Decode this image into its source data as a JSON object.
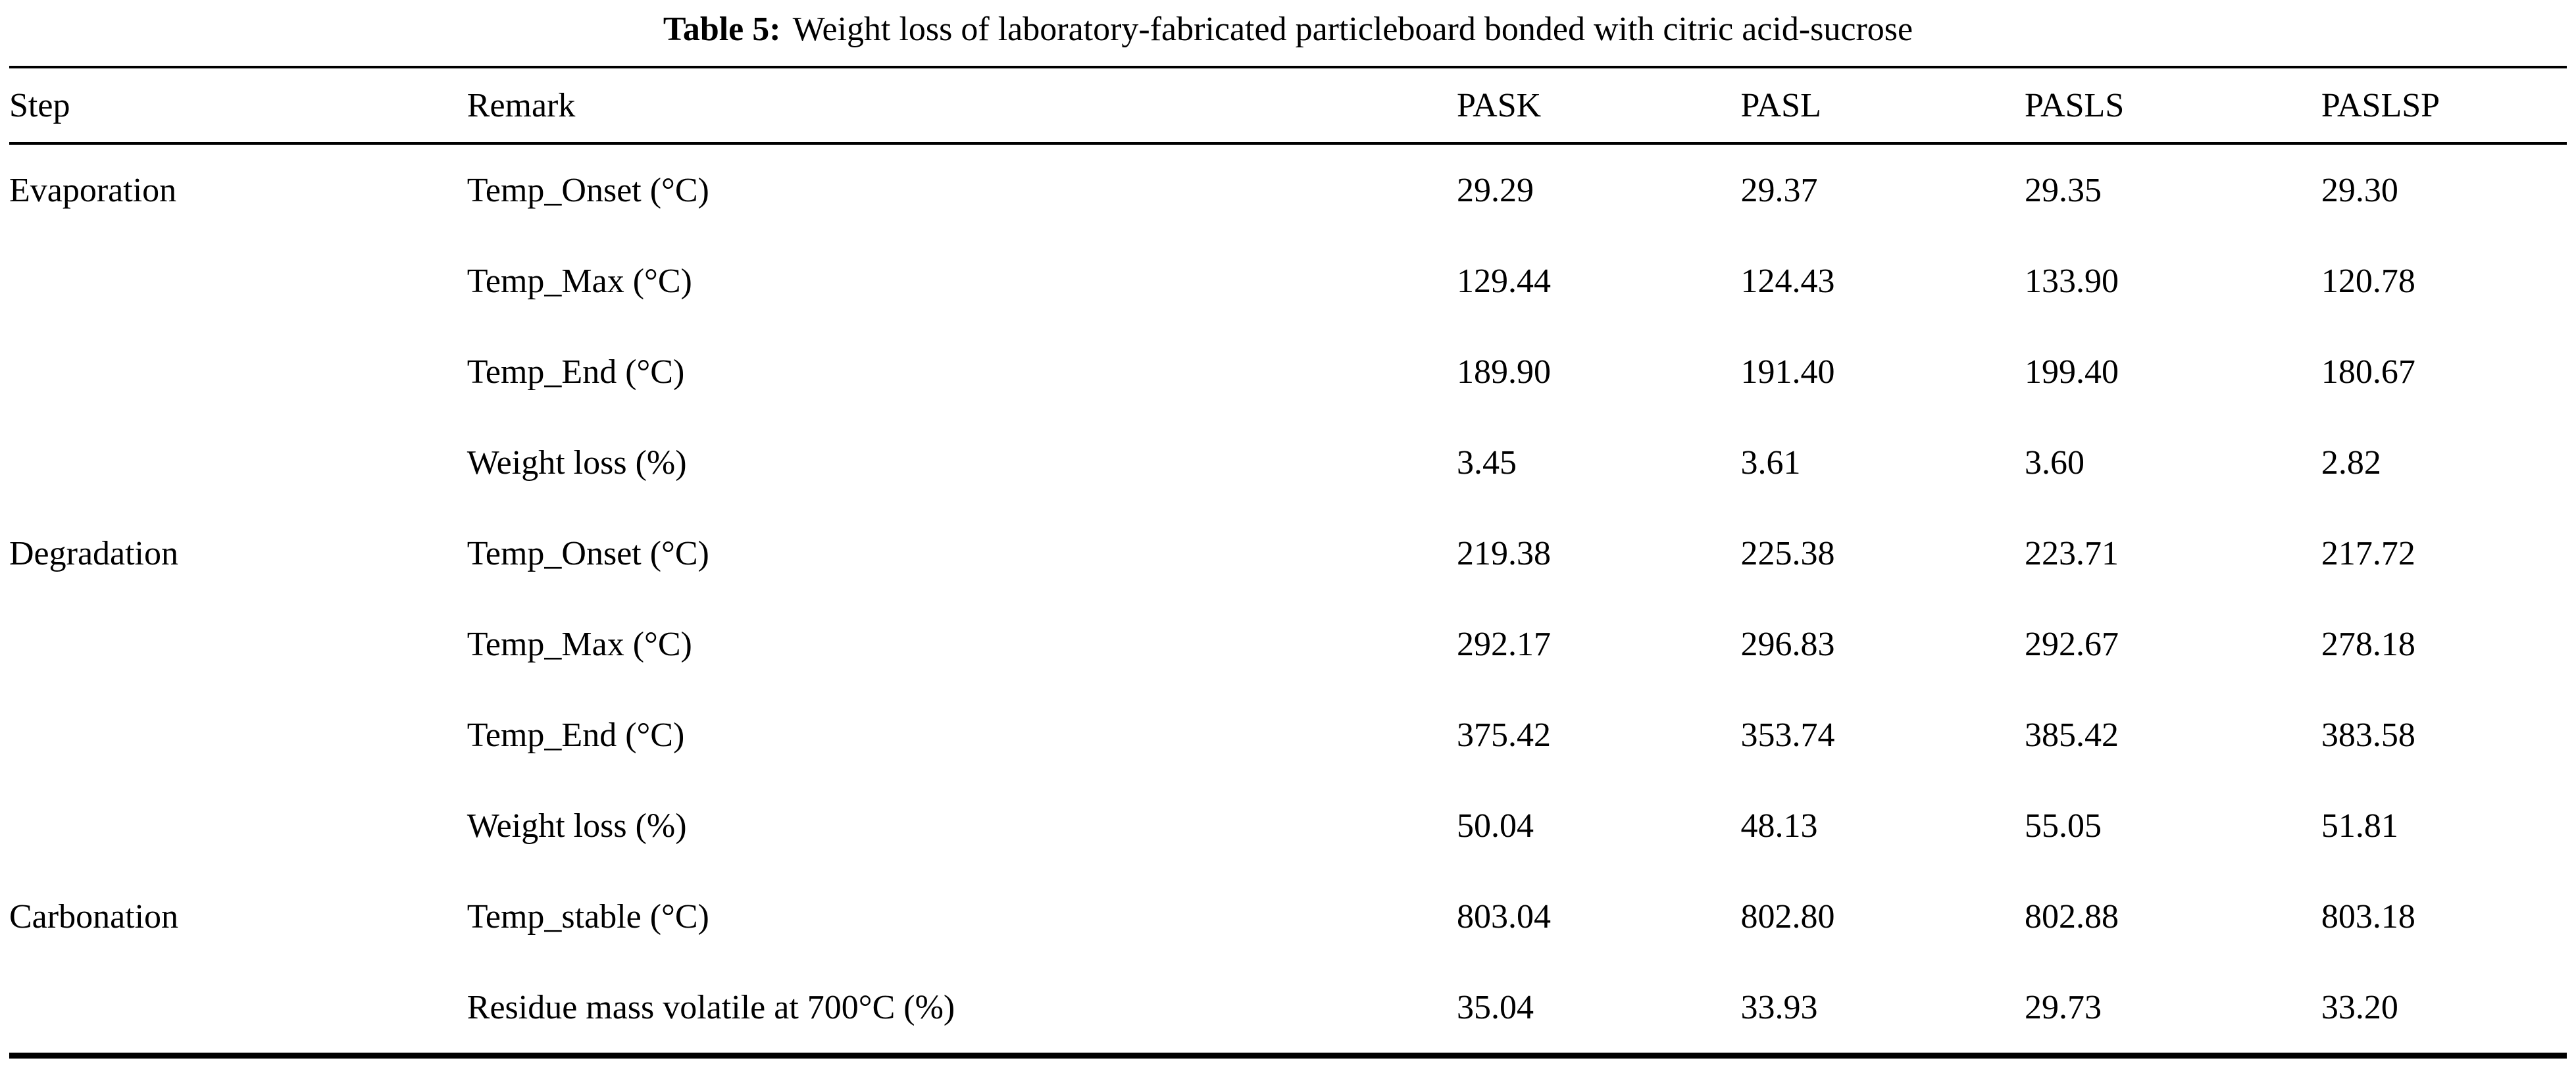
{
  "caption": {
    "label": "Table 5:",
    "text": "Weight loss of laboratory-fabricated particleboard bonded with citric acid-sucrose"
  },
  "table": {
    "headers": [
      "Step",
      "Remark",
      "PASK",
      "PASL",
      "PASLS",
      "PASLSP"
    ],
    "rows": [
      {
        "step": "Evaporation",
        "remark": "Temp_Onset (°C)",
        "values": [
          "29.29",
          "29.37",
          "29.35",
          "29.30"
        ]
      },
      {
        "step": "",
        "remark": "Temp_Max (°C)",
        "values": [
          "129.44",
          "124.43",
          "133.90",
          "120.78"
        ]
      },
      {
        "step": "",
        "remark": "Temp_End (°C)",
        "values": [
          "189.90",
          "191.40",
          "199.40",
          "180.67"
        ]
      },
      {
        "step": "",
        "remark": "Weight loss (%)",
        "values": [
          "3.45",
          "3.61",
          "3.60",
          "2.82"
        ]
      },
      {
        "step": "Degradation",
        "remark": "Temp_Onset (°C)",
        "values": [
          "219.38",
          "225.38",
          "223.71",
          "217.72"
        ]
      },
      {
        "step": "",
        "remark": "Temp_Max (°C)",
        "values": [
          "292.17",
          "296.83",
          "292.67",
          "278.18"
        ]
      },
      {
        "step": "",
        "remark": "Temp_End (°C)",
        "values": [
          "375.42",
          "353.74",
          "385.42",
          "383.58"
        ]
      },
      {
        "step": "",
        "remark": "Weight loss (%)",
        "values": [
          "50.04",
          "48.13",
          "55.05",
          "51.81"
        ]
      },
      {
        "step": "Carbonation",
        "remark": "Temp_stable (°C)",
        "values": [
          "803.04",
          "802.80",
          "802.88",
          "803.18"
        ]
      },
      {
        "step": "",
        "remark": "Residue mass volatile at 700°C (%)",
        "values": [
          "35.04",
          "33.93",
          "29.73",
          "33.20"
        ]
      }
    ]
  }
}
